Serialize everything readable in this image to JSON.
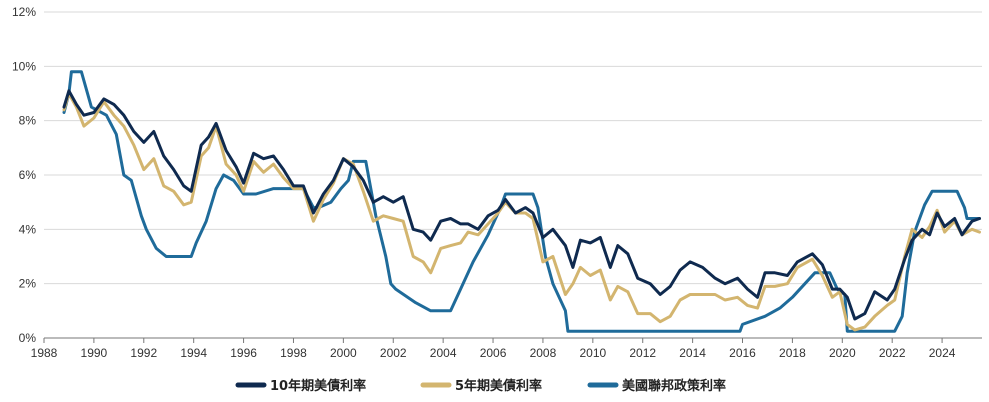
{
  "colors": {
    "navy": "#0f2a4f",
    "gold": "#d3b56f",
    "blue": "#1f6b9a",
    "grid": "#d9d9d9",
    "axis": "#777777"
  },
  "chart_data": {
    "type": "line",
    "title": "",
    "xlabel": "",
    "ylabel": "",
    "xlim": [
      1988,
      2025.6
    ],
    "ylim": [
      0,
      12
    ],
    "grid": true,
    "legend_position": "bottom",
    "x_ticks": [
      "1988",
      "1990",
      "1992",
      "1994",
      "1996",
      "1998",
      "2000",
      "2002",
      "2004",
      "2006",
      "2008",
      "2010",
      "2012",
      "2014",
      "2016",
      "2018",
      "2020",
      "2022",
      "2024"
    ],
    "y_ticks": [
      "0%",
      "2%",
      "4%",
      "6%",
      "8%",
      "10%",
      "12%"
    ],
    "series": [
      {
        "name": "10年期美債利率",
        "color": "#0f2a4f",
        "x": [
          1988.8,
          1989.0,
          1989.3,
          1989.6,
          1990.0,
          1990.4,
          1990.8,
          1991.2,
          1991.6,
          1992.0,
          1992.4,
          1992.8,
          1993.2,
          1993.6,
          1993.9,
          1994.3,
          1994.6,
          1994.9,
          1995.3,
          1995.7,
          1996.0,
          1996.4,
          1996.8,
          1997.2,
          1997.6,
          1998.0,
          1998.4,
          1998.8,
          1999.2,
          1999.6,
          2000.0,
          2000.4,
          2000.8,
          2001.2,
          2001.6,
          2002.0,
          2002.4,
          2002.8,
          2003.2,
          2003.5,
          2003.9,
          2004.3,
          2004.7,
          2005.0,
          2005.4,
          2005.8,
          2006.2,
          2006.5,
          2006.9,
          2007.3,
          2007.6,
          2008.0,
          2008.4,
          2008.9,
          2009.2,
          2009.5,
          2009.9,
          2010.3,
          2010.7,
          2011.0,
          2011.4,
          2011.8,
          2012.3,
          2012.7,
          2013.1,
          2013.5,
          2013.9,
          2014.4,
          2014.9,
          2015.3,
          2015.8,
          2016.2,
          2016.6,
          2016.9,
          2017.3,
          2017.8,
          2018.2,
          2018.8,
          2019.2,
          2019.6,
          2019.9,
          2020.2,
          2020.5,
          2020.9,
          2021.3,
          2021.8,
          2022.1,
          2022.5,
          2022.8,
          2023.2,
          2023.5,
          2023.8,
          2024.1,
          2024.5,
          2024.8,
          2025.2,
          2025.5
        ],
        "y": [
          8.5,
          9.1,
          8.6,
          8.2,
          8.3,
          8.8,
          8.6,
          8.2,
          7.6,
          7.2,
          7.6,
          6.7,
          6.2,
          5.6,
          5.4,
          7.1,
          7.4,
          7.9,
          6.9,
          6.3,
          5.7,
          6.8,
          6.6,
          6.7,
          6.2,
          5.6,
          5.6,
          4.6,
          5.3,
          5.8,
          6.6,
          6.3,
          5.8,
          5.0,
          5.2,
          5.0,
          5.2,
          4.0,
          3.9,
          3.6,
          4.3,
          4.4,
          4.2,
          4.2,
          4.0,
          4.5,
          4.7,
          5.1,
          4.6,
          4.8,
          4.6,
          3.7,
          4.0,
          3.4,
          2.6,
          3.6,
          3.5,
          3.7,
          2.6,
          3.4,
          3.1,
          2.2,
          2.0,
          1.6,
          1.9,
          2.5,
          2.8,
          2.6,
          2.2,
          2.0,
          2.2,
          1.8,
          1.5,
          2.4,
          2.4,
          2.3,
          2.8,
          3.1,
          2.7,
          1.8,
          1.8,
          1.5,
          0.7,
          0.9,
          1.7,
          1.4,
          1.8,
          2.9,
          3.6,
          4.0,
          3.8,
          4.6,
          4.1,
          4.4,
          3.8,
          4.3,
          4.4
        ]
      },
      {
        "name": "5年期美債利率",
        "color": "#d3b56f",
        "x": [
          1988.8,
          1989.0,
          1989.3,
          1989.6,
          1990.0,
          1990.4,
          1990.8,
          1991.2,
          1991.6,
          1992.0,
          1992.4,
          1992.8,
          1993.2,
          1993.6,
          1993.9,
          1994.3,
          1994.6,
          1994.9,
          1995.3,
          1995.7,
          1996.0,
          1996.4,
          1996.8,
          1997.2,
          1997.6,
          1998.0,
          1998.4,
          1998.8,
          1999.2,
          1999.6,
          2000.0,
          2000.4,
          2000.8,
          2001.2,
          2001.6,
          2002.0,
          2002.4,
          2002.8,
          2003.2,
          2003.5,
          2003.9,
          2004.3,
          2004.7,
          2005.0,
          2005.4,
          2005.8,
          2006.2,
          2006.5,
          2006.9,
          2007.3,
          2007.6,
          2008.0,
          2008.4,
          2008.9,
          2009.2,
          2009.5,
          2009.9,
          2010.3,
          2010.7,
          2011.0,
          2011.4,
          2011.8,
          2012.3,
          2012.7,
          2013.1,
          2013.5,
          2013.9,
          2014.4,
          2014.9,
          2015.3,
          2015.8,
          2016.2,
          2016.6,
          2016.9,
          2017.3,
          2017.8,
          2018.2,
          2018.8,
          2019.2,
          2019.6,
          2019.9,
          2020.2,
          2020.5,
          2020.9,
          2021.3,
          2021.8,
          2022.1,
          2022.5,
          2022.8,
          2023.2,
          2023.5,
          2023.8,
          2024.1,
          2024.5,
          2024.8,
          2025.2,
          2025.5
        ],
        "y": [
          8.4,
          9.0,
          8.5,
          7.8,
          8.1,
          8.7,
          8.2,
          7.8,
          7.1,
          6.2,
          6.6,
          5.6,
          5.4,
          4.9,
          5.0,
          6.7,
          7.0,
          7.8,
          6.4,
          6.0,
          5.4,
          6.5,
          6.1,
          6.4,
          5.9,
          5.5,
          5.5,
          4.3,
          5.1,
          5.7,
          6.6,
          6.4,
          5.4,
          4.3,
          4.5,
          4.4,
          4.3,
          3.0,
          2.8,
          2.4,
          3.3,
          3.4,
          3.5,
          3.9,
          3.8,
          4.2,
          4.6,
          5.0,
          4.6,
          4.6,
          4.4,
          2.8,
          3.0,
          1.6,
          2.0,
          2.6,
          2.3,
          2.5,
          1.4,
          1.9,
          1.7,
          0.9,
          0.9,
          0.6,
          0.8,
          1.4,
          1.6,
          1.6,
          1.6,
          1.4,
          1.5,
          1.2,
          1.1,
          1.9,
          1.9,
          2.0,
          2.6,
          2.9,
          2.3,
          1.5,
          1.7,
          0.5,
          0.3,
          0.4,
          0.8,
          1.2,
          1.4,
          3.0,
          4.0,
          3.7,
          4.1,
          4.7,
          3.9,
          4.3,
          3.8,
          4.0,
          3.9
        ]
      },
      {
        "name": "美國聯邦政策利率",
        "color": "#1f6b9a",
        "x": [
          1988.8,
          1989.0,
          1989.1,
          1989.5,
          1989.9,
          1990.5,
          1990.9,
          1991.2,
          1991.5,
          1991.9,
          1992.1,
          1992.5,
          1992.9,
          1993.9,
          1994.1,
          1994.5,
          1994.9,
          1995.2,
          1995.6,
          1996.0,
          1996.5,
          1997.2,
          1997.6,
          1998.4,
          1998.8,
          1999.0,
          1999.5,
          1999.9,
          2000.2,
          2000.4,
          2000.9,
          2001.0,
          2001.3,
          2001.7,
          2001.9,
          2002.1,
          2002.9,
          2003.5,
          2004.3,
          2004.6,
          2005.2,
          2005.8,
          2006.3,
          2006.5,
          2007.6,
          2007.8,
          2008.1,
          2008.4,
          2008.9,
          2009.0,
          2015.9,
          2016.0,
          2016.9,
          2017.5,
          2018.0,
          2018.5,
          2018.9,
          2019.5,
          2019.8,
          2020.1,
          2020.2,
          2022.1,
          2022.4,
          2022.6,
          2022.9,
          2023.3,
          2023.6,
          2024.6,
          2024.9,
          2025.0,
          2025.5
        ],
        "y": [
          8.3,
          9.0,
          9.8,
          9.8,
          8.5,
          8.2,
          7.5,
          6.0,
          5.8,
          4.5,
          4.0,
          3.3,
          3.0,
          3.0,
          3.5,
          4.3,
          5.5,
          6.0,
          5.8,
          5.3,
          5.3,
          5.5,
          5.5,
          5.5,
          4.8,
          4.8,
          5.0,
          5.5,
          5.8,
          6.5,
          6.5,
          6.0,
          4.5,
          3.0,
          2.0,
          1.8,
          1.3,
          1.0,
          1.0,
          1.6,
          2.8,
          3.8,
          4.8,
          5.3,
          5.3,
          4.8,
          3.0,
          2.0,
          1.0,
          0.25,
          0.25,
          0.5,
          0.8,
          1.1,
          1.5,
          2.0,
          2.4,
          2.4,
          1.8,
          1.6,
          0.25,
          0.25,
          0.8,
          2.4,
          3.9,
          4.9,
          5.4,
          5.4,
          4.8,
          4.4,
          4.4
        ]
      }
    ]
  }
}
